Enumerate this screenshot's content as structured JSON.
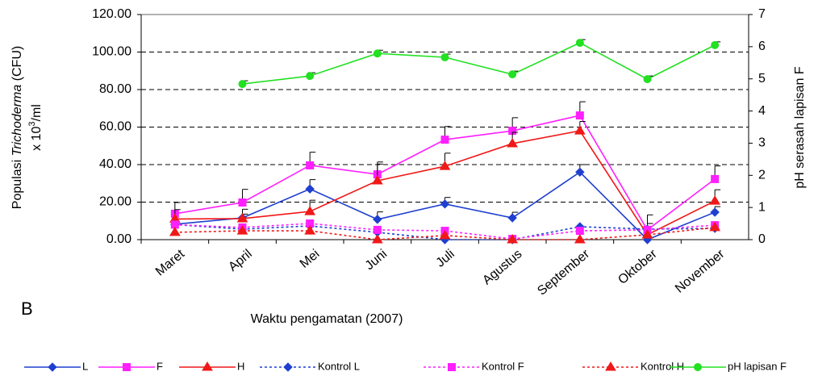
{
  "chart_data": {
    "type": "line",
    "panel_label": "B",
    "x_label": "Waktu pengamatan (2007)",
    "y_label": [
      "Populasi",
      "Trichoderma",
      "(CFU)"
    ],
    "y_label_unit": [
      "x 10",
      "3",
      "/ml"
    ],
    "y2_label": "pH serasah lapisan F",
    "categories": [
      "Maret",
      "April",
      "Mei",
      "Juni",
      "Juli",
      "Agustus",
      "September",
      "Oktober",
      "November"
    ],
    "ylim": [
      0,
      120
    ],
    "yticks": [
      {
        "value": 0,
        "label": "0.00"
      },
      {
        "value": 20,
        "label": "20.00"
      },
      {
        "value": 40,
        "label": "40.00"
      },
      {
        "value": 60,
        "label": "60.00"
      },
      {
        "value": 80,
        "label": "80.00"
      },
      {
        "value": 100,
        "label": "100.00"
      },
      {
        "value": 120,
        "label": "120.00"
      }
    ],
    "y2lim": [
      0,
      7
    ],
    "y2ticks": [
      0,
      1,
      2,
      3,
      4,
      5,
      6,
      7
    ],
    "grid": true,
    "series": [
      {
        "name": "L",
        "color": "#1f3fd0",
        "line_style": "solid",
        "marker": "diamond",
        "values": [
          8.2,
          11.6,
          27,
          10.8,
          19,
          11.6,
          36,
          0,
          14.6
        ],
        "errors": [
          null,
          2,
          5,
          4,
          3.5,
          3,
          4,
          null,
          3
        ]
      },
      {
        "name": "F",
        "color": "#ff1fff",
        "line_style": "solid",
        "marker": "square",
        "values": [
          13.8,
          19.8,
          39.6,
          34.8,
          53.3,
          58,
          66.2,
          5.2,
          32.3
        ],
        "errors": [
          6,
          7,
          7,
          5.5,
          7,
          7,
          7.3,
          8,
          7
        ]
      },
      {
        "name": "H",
        "color": "#f01818",
        "line_style": "solid",
        "marker": "triangle",
        "values": [
          11,
          11.2,
          15,
          31.4,
          39.1,
          51.2,
          58,
          2.6,
          20.6
        ],
        "errors": [
          5,
          5,
          6,
          10,
          7,
          6,
          5,
          6,
          6
        ]
      },
      {
        "name": "Kontrol L",
        "color": "#1f3fd0",
        "line_style": "dotted",
        "marker": "diamond",
        "values": [
          8,
          5.6,
          7.3,
          3.9,
          0,
          0,
          6.9,
          5.6,
          6
        ]
      },
      {
        "name": "Kontrol F",
        "color": "#ff1fff",
        "line_style": "dotted",
        "marker": "square",
        "values": [
          8,
          6.5,
          8.6,
          5.2,
          4.7,
          0.4,
          4.7,
          5.2,
          7.7
        ]
      },
      {
        "name": "Kontrol H",
        "color": "#f01818",
        "line_style": "dotted",
        "marker": "triangle",
        "values": [
          3.9,
          4.7,
          4.7,
          0,
          2.2,
          0,
          0,
          2.6,
          6.5
        ]
      },
      {
        "name": "pH lapisan F",
        "color": "#22e022",
        "line_style": "solid",
        "marker": "circle",
        "axis": "y2",
        "values": [
          null,
          4.84,
          5.09,
          5.79,
          5.67,
          5.14,
          6.12,
          4.99,
          6.05
        ],
        "errors": [
          null,
          0.1,
          0.1,
          0.1,
          0.1,
          0.1,
          0.1,
          0.1,
          0.1
        ]
      }
    ]
  }
}
